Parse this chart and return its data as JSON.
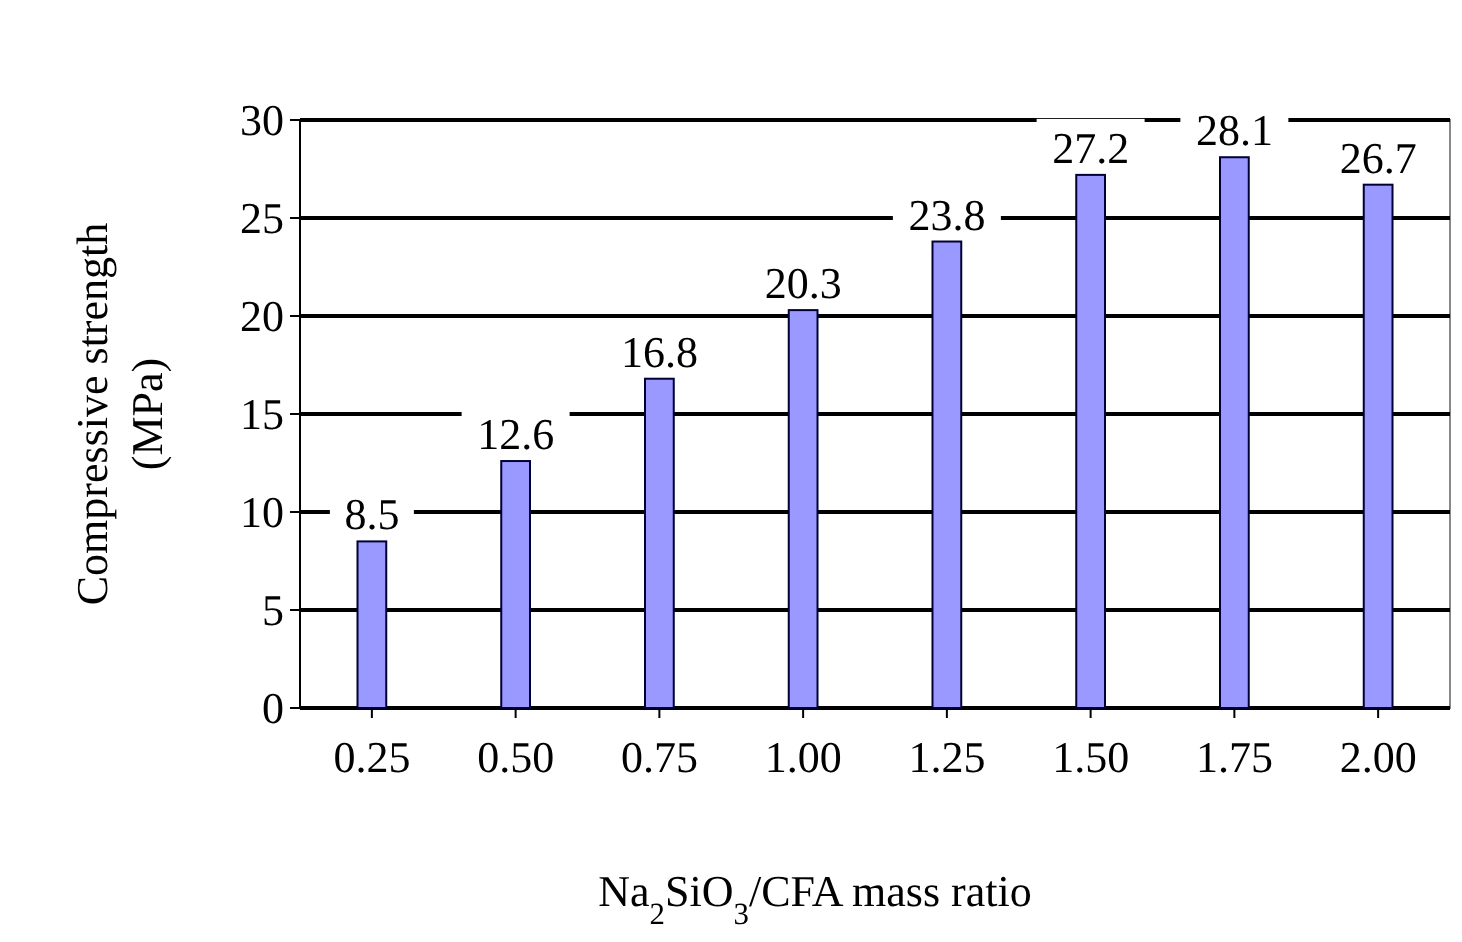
{
  "chart_data": {
    "type": "bar",
    "xlabel": "Na$_{2}$SiO$_{3}$/CFA mass ratio",
    "ylabel": "Compressive strength (MPa)",
    "categories": [
      "0.25",
      "0.50",
      "0.75",
      "1.00",
      "1.25",
      "1.50",
      "1.75",
      "2.00"
    ],
    "values": [
      8.5,
      12.6,
      16.8,
      20.3,
      23.8,
      27.2,
      28.1,
      26.7
    ],
    "color": "#9999ff",
    "ylim": [
      0,
      30
    ],
    "yticks": [
      0,
      5,
      10,
      15,
      20,
      25,
      30
    ],
    "grid": "y",
    "data_labels": true
  }
}
